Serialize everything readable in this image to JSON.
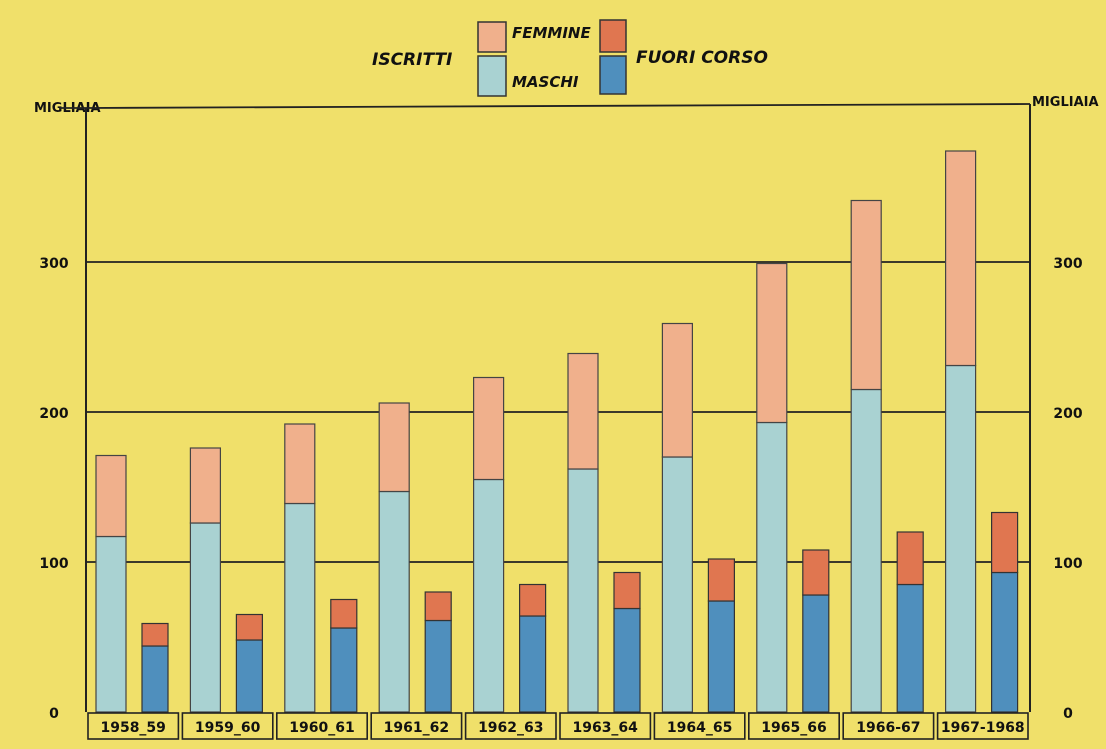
{
  "chart_data": {
    "type": "bar",
    "categories": [
      "1958_59",
      "1959_60",
      "1960_61",
      "1961_62",
      "1962_63",
      "1963_64",
      "1964_65",
      "1965_66",
      "1966-67",
      "1967-1968"
    ],
    "legend": {
      "group_iscritti": "ISCRITTI",
      "femmine": "FEMMINE",
      "maschi": "MASCHI",
      "fuori_corso": "FUORI CORSO"
    },
    "ylabel_left": "MIGLIAIA",
    "ylabel_right": "MIGLIAIA",
    "ylim": [
      0,
      400
    ],
    "yticks": [
      0,
      100,
      200,
      300
    ],
    "grid": true,
    "series": [
      {
        "name": "MASCHI",
        "stack": "ISCRITTI",
        "values": [
          117,
          126,
          139,
          147,
          155,
          162,
          170,
          193,
          215,
          231
        ]
      },
      {
        "name": "FEMMINE",
        "stack": "ISCRITTI",
        "values": [
          54,
          50,
          53,
          59,
          68,
          77,
          89,
          106,
          126,
          143
        ]
      },
      {
        "name": "FUORI CORSO (MASCHI)",
        "stack": "FUORI CORSO",
        "values": [
          44,
          48,
          56,
          61,
          64,
          69,
          74,
          78,
          85,
          93
        ]
      },
      {
        "name": "FUORI CORSO (FEMMINE)",
        "stack": "FUORI CORSO",
        "values": [
          15,
          17,
          19,
          19,
          21,
          24,
          28,
          30,
          35,
          40
        ]
      }
    ],
    "colors": {
      "background": "#f0e06a",
      "femmine": "#f0b08c",
      "maschi": "#a9d2d2",
      "fuori_corso_top": "#e07650",
      "fuori_corso_bottom": "#4f8fbd",
      "grid": "#222222"
    }
  }
}
